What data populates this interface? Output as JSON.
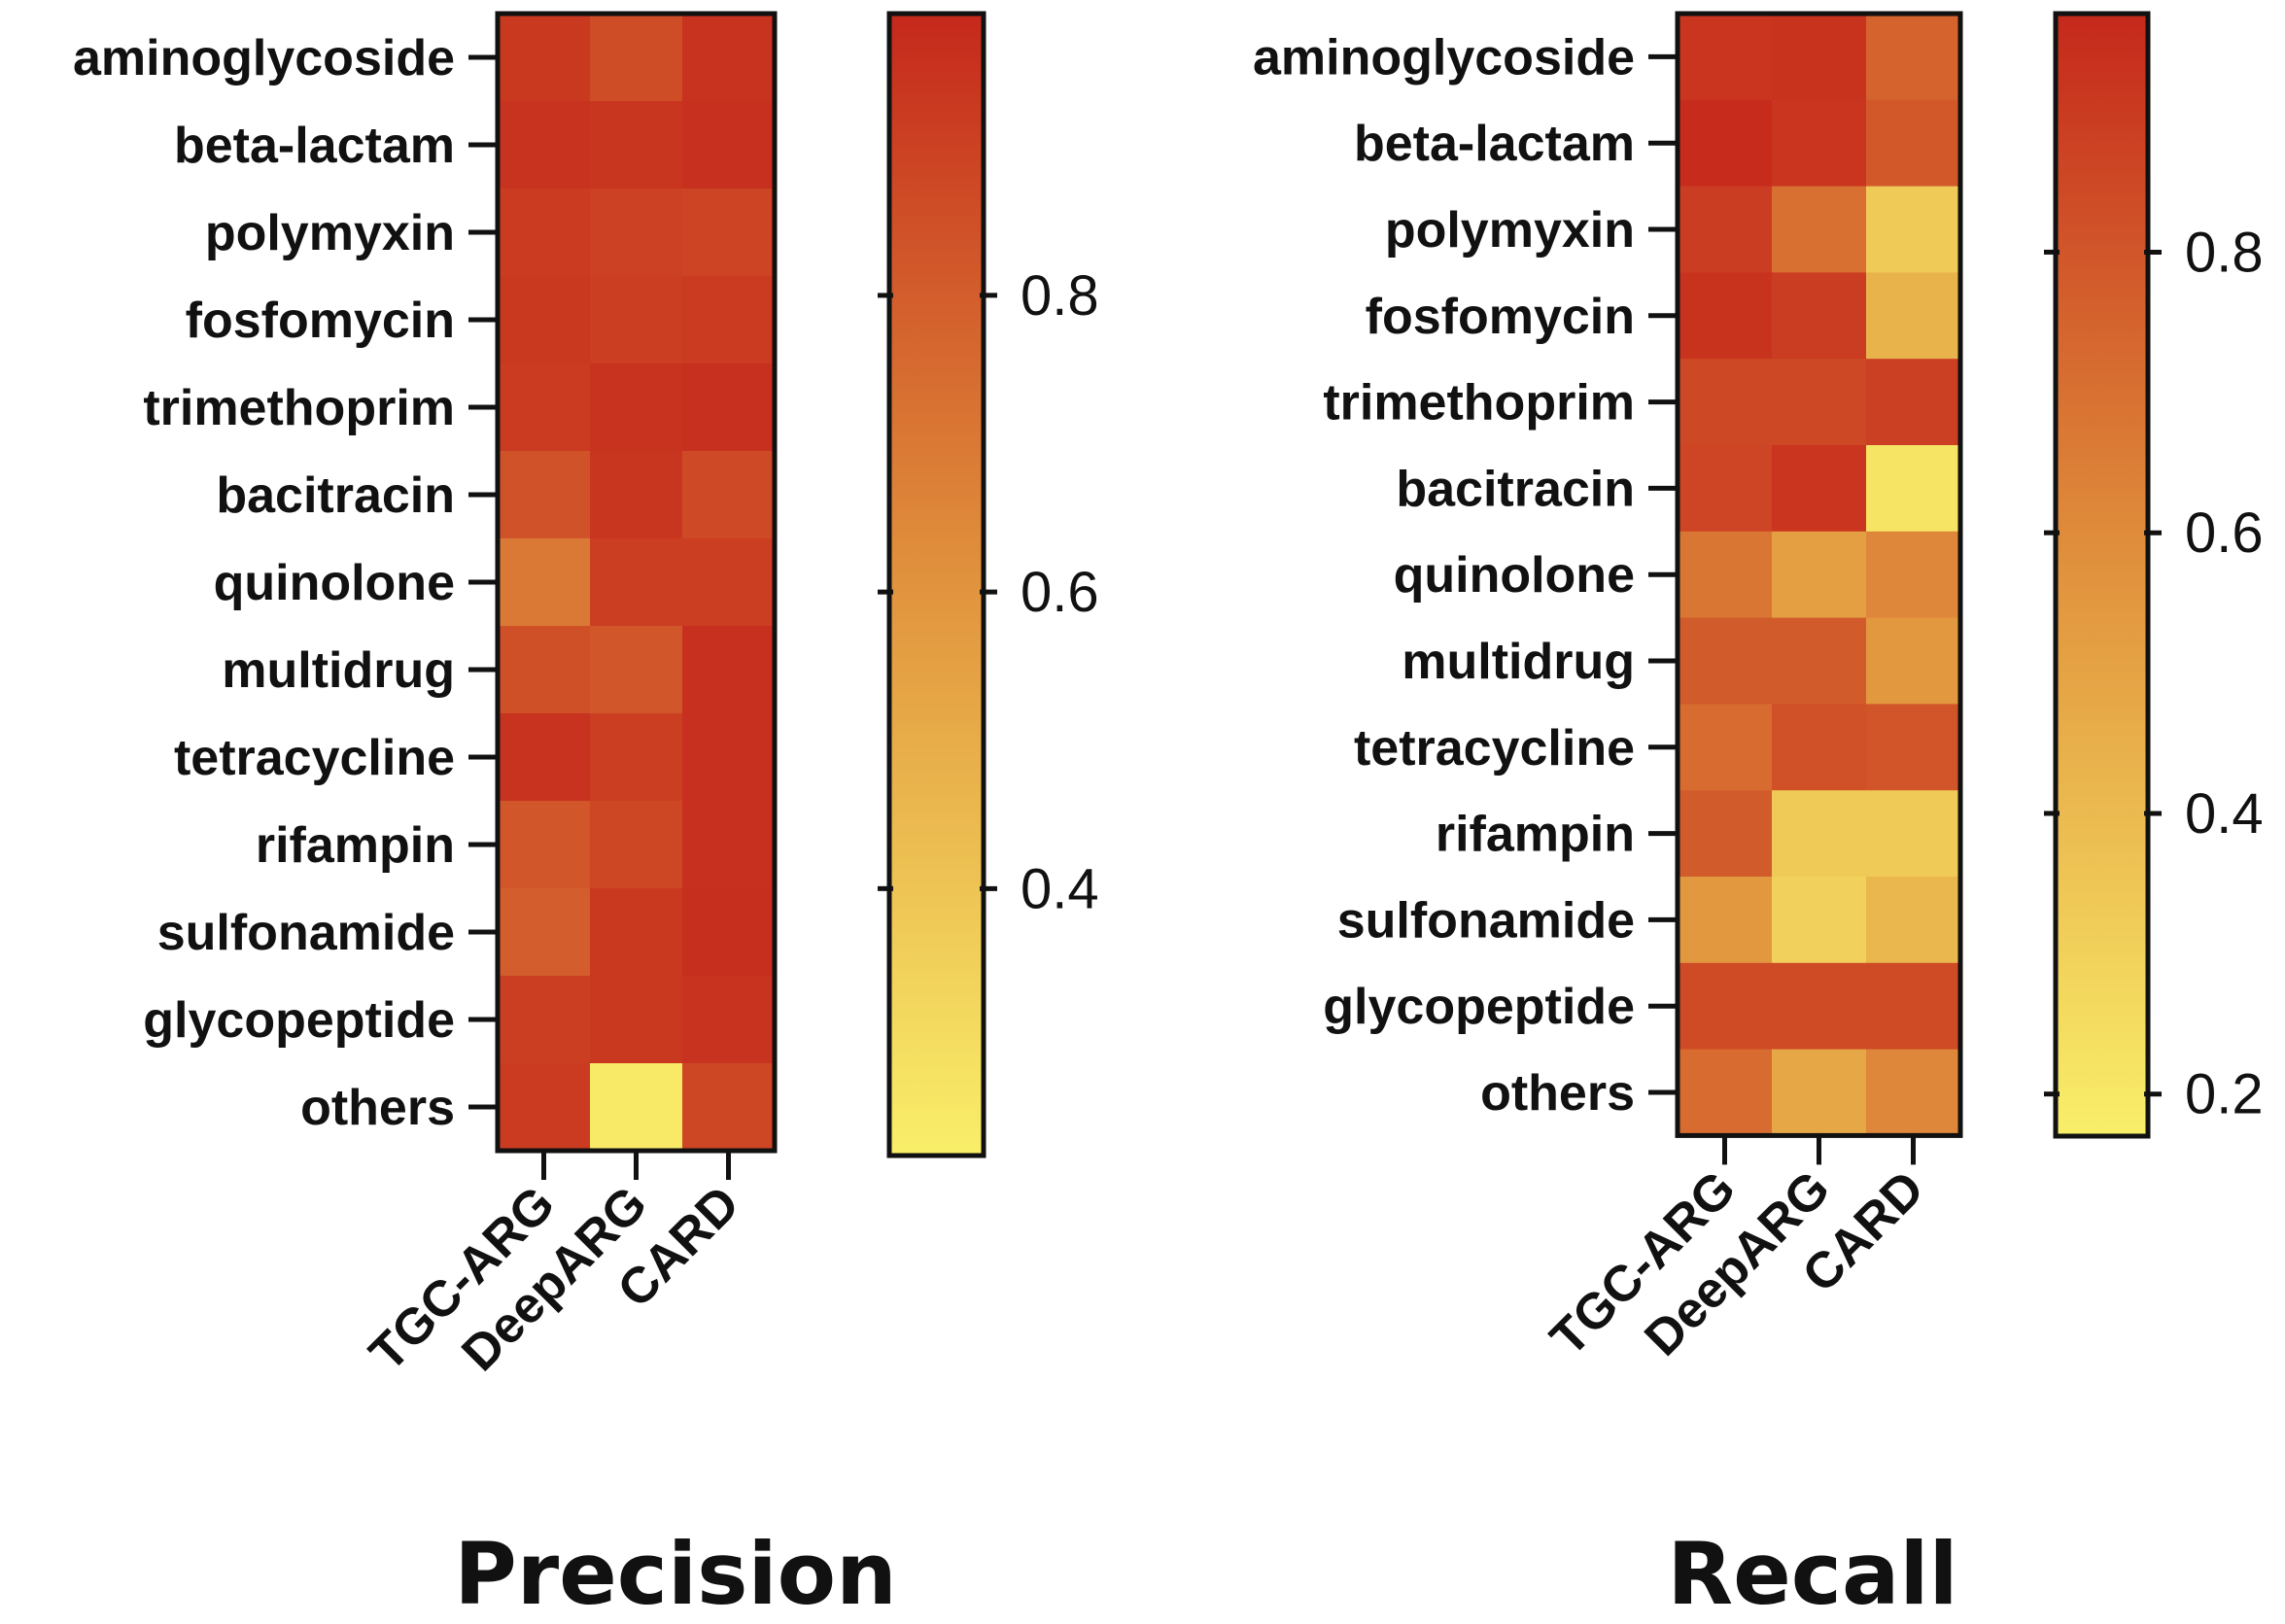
{
  "chart_data": [
    {
      "type": "heatmap",
      "title": "Precision",
      "rows": [
        "aminoglycoside",
        "beta-lactam",
        "polymyxin",
        "fosfomycin",
        "trimethoprim",
        "bacitracin",
        "quinolone",
        "multidrug",
        "tetracycline",
        "rifampin",
        "sulfonamide",
        "glycopeptide",
        "others"
      ],
      "columns": [
        "TGC-ARG",
        "DeepARG",
        "CARD"
      ],
      "values": [
        [
          0.93,
          0.86,
          0.95
        ],
        [
          0.95,
          0.94,
          0.96
        ],
        [
          0.92,
          0.9,
          0.89
        ],
        [
          0.93,
          0.91,
          0.92
        ],
        [
          0.92,
          0.95,
          0.96
        ],
        [
          0.84,
          0.94,
          0.87
        ],
        [
          0.7,
          0.91,
          0.91
        ],
        [
          0.85,
          0.82,
          0.96
        ],
        [
          0.95,
          0.91,
          0.96
        ],
        [
          0.82,
          0.88,
          0.96
        ],
        [
          0.8,
          0.93,
          0.97
        ],
        [
          0.91,
          0.93,
          0.95
        ],
        [
          0.92,
          0.24,
          0.88
        ]
      ],
      "colorbar": {
        "min": 0.22,
        "max": 0.99,
        "ticks": [
          "0.4",
          "0.6",
          "0.8"
        ]
      }
    },
    {
      "type": "heatmap",
      "title": "Recall",
      "rows": [
        "aminoglycoside",
        "beta-lactam",
        "polymyxin",
        "fosfomycin",
        "trimethoprim",
        "bacitracin",
        "quinolone",
        "multidrug",
        "tetracycline",
        "rifampin",
        "sulfonamide",
        "glycopeptide",
        "others"
      ],
      "columns": [
        "TGC-ARG",
        "DeepARG",
        "CARD"
      ],
      "values": [
        [
          0.92,
          0.93,
          0.75
        ],
        [
          0.96,
          0.92,
          0.79
        ],
        [
          0.89,
          0.7,
          0.33
        ],
        [
          0.93,
          0.89,
          0.43
        ],
        [
          0.85,
          0.85,
          0.88
        ],
        [
          0.86,
          0.92,
          0.22
        ],
        [
          0.68,
          0.52,
          0.62
        ],
        [
          0.78,
          0.78,
          0.55
        ],
        [
          0.72,
          0.82,
          0.8
        ],
        [
          0.78,
          0.33,
          0.33
        ],
        [
          0.55,
          0.3,
          0.42
        ],
        [
          0.84,
          0.84,
          0.84
        ],
        [
          0.72,
          0.48,
          0.62
        ]
      ],
      "colorbar": {
        "min": 0.17,
        "max": 0.97,
        "ticks": [
          "0.2",
          "0.4",
          "0.6",
          "0.8"
        ]
      }
    }
  ],
  "colors": {
    "low": "#f9ef69",
    "mid": "#e1933d",
    "high": "#c5281b",
    "frame": "#111111"
  }
}
